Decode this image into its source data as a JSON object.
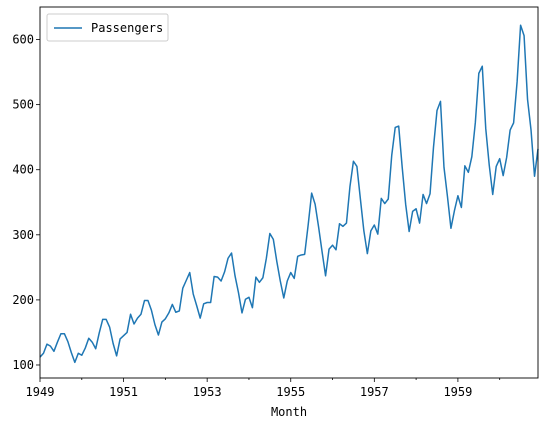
{
  "chart_data": {
    "type": "line",
    "title": "",
    "xlabel": "Month",
    "ylabel": "",
    "x_start": "1949-01",
    "x_end": "1960-12",
    "xlim": [
      "1949-01",
      "1960-12"
    ],
    "ylim": [
      80,
      650
    ],
    "x_ticks": [
      "1949",
      "1951",
      "1953",
      "1955",
      "1957",
      "1959"
    ],
    "y_ticks": [
      "100",
      "200",
      "300",
      "400",
      "500",
      "600"
    ],
    "grid": false,
    "legend": {
      "position": "top-left",
      "entries": [
        "Passengers"
      ]
    },
    "series": [
      {
        "name": "Passengers",
        "color": "#1f77b4",
        "values": [
          112,
          118,
          132,
          129,
          121,
          135,
          148,
          148,
          136,
          119,
          104,
          118,
          115,
          126,
          141,
          135,
          125,
          149,
          170,
          170,
          158,
          133,
          114,
          140,
          145,
          150,
          178,
          163,
          172,
          178,
          199,
          199,
          184,
          162,
          146,
          166,
          171,
          180,
          193,
          181,
          183,
          218,
          230,
          242,
          209,
          191,
          172,
          194,
          196,
          196,
          236,
          235,
          229,
          243,
          264,
          272,
          237,
          211,
          180,
          201,
          204,
          188,
          235,
          227,
          234,
          264,
          302,
          293,
          259,
          229,
          203,
          229,
          242,
          233,
          267,
          269,
          270,
          315,
          364,
          347,
          312,
          274,
          237,
          278,
          284,
          277,
          317,
          313,
          318,
          374,
          413,
          405,
          355,
          306,
          271,
          306,
          315,
          301,
          356,
          348,
          355,
          422,
          465,
          467,
          404,
          347,
          305,
          336,
          340,
          318,
          362,
          348,
          363,
          435,
          491,
          505,
          404,
          359,
          310,
          337,
          360,
          342,
          406,
          396,
          420,
          472,
          548,
          559,
          463,
          407,
          362,
          405,
          417,
          391,
          419,
          461,
          472,
          535,
          622,
          606,
          508,
          461,
          390,
          432
        ]
      }
    ]
  }
}
